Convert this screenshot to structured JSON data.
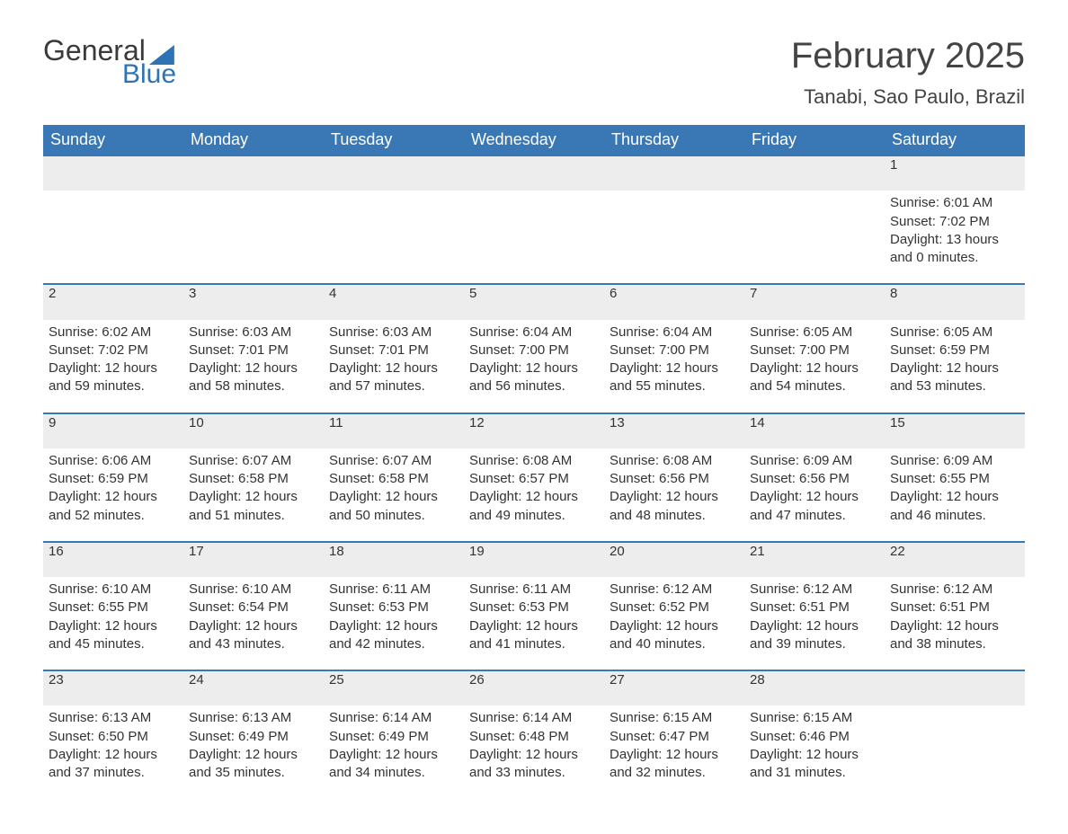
{
  "logo": {
    "word1": "General",
    "word2": "Blue"
  },
  "title": "February 2025",
  "location": "Tanabi, Sao Paulo, Brazil",
  "columns": [
    "Sunday",
    "Monday",
    "Tuesday",
    "Wednesday",
    "Thursday",
    "Friday",
    "Saturday"
  ],
  "colors": {
    "header_bg": "#3a78b5",
    "header_text": "#ffffff",
    "daynum_bg": "#ededed",
    "rule": "#3a78b5",
    "text": "#333333",
    "logo_accent": "#2e74b5"
  },
  "typography": {
    "title_fontsize": 40,
    "location_fontsize": 22,
    "header_fontsize": 18,
    "body_fontsize": 15
  },
  "layout": {
    "cols": 7,
    "rows": 5,
    "first_day_col_index": 6
  },
  "weeks": [
    [
      null,
      null,
      null,
      null,
      null,
      null,
      {
        "day": "1",
        "sunrise": "Sunrise: 6:01 AM",
        "sunset": "Sunset: 7:02 PM",
        "daylight1": "Daylight: 13 hours",
        "daylight2": "and 0 minutes."
      }
    ],
    [
      {
        "day": "2",
        "sunrise": "Sunrise: 6:02 AM",
        "sunset": "Sunset: 7:02 PM",
        "daylight1": "Daylight: 12 hours",
        "daylight2": "and 59 minutes."
      },
      {
        "day": "3",
        "sunrise": "Sunrise: 6:03 AM",
        "sunset": "Sunset: 7:01 PM",
        "daylight1": "Daylight: 12 hours",
        "daylight2": "and 58 minutes."
      },
      {
        "day": "4",
        "sunrise": "Sunrise: 6:03 AM",
        "sunset": "Sunset: 7:01 PM",
        "daylight1": "Daylight: 12 hours",
        "daylight2": "and 57 minutes."
      },
      {
        "day": "5",
        "sunrise": "Sunrise: 6:04 AM",
        "sunset": "Sunset: 7:00 PM",
        "daylight1": "Daylight: 12 hours",
        "daylight2": "and 56 minutes."
      },
      {
        "day": "6",
        "sunrise": "Sunrise: 6:04 AM",
        "sunset": "Sunset: 7:00 PM",
        "daylight1": "Daylight: 12 hours",
        "daylight2": "and 55 minutes."
      },
      {
        "day": "7",
        "sunrise": "Sunrise: 6:05 AM",
        "sunset": "Sunset: 7:00 PM",
        "daylight1": "Daylight: 12 hours",
        "daylight2": "and 54 minutes."
      },
      {
        "day": "8",
        "sunrise": "Sunrise: 6:05 AM",
        "sunset": "Sunset: 6:59 PM",
        "daylight1": "Daylight: 12 hours",
        "daylight2": "and 53 minutes."
      }
    ],
    [
      {
        "day": "9",
        "sunrise": "Sunrise: 6:06 AM",
        "sunset": "Sunset: 6:59 PM",
        "daylight1": "Daylight: 12 hours",
        "daylight2": "and 52 minutes."
      },
      {
        "day": "10",
        "sunrise": "Sunrise: 6:07 AM",
        "sunset": "Sunset: 6:58 PM",
        "daylight1": "Daylight: 12 hours",
        "daylight2": "and 51 minutes."
      },
      {
        "day": "11",
        "sunrise": "Sunrise: 6:07 AM",
        "sunset": "Sunset: 6:58 PM",
        "daylight1": "Daylight: 12 hours",
        "daylight2": "and 50 minutes."
      },
      {
        "day": "12",
        "sunrise": "Sunrise: 6:08 AM",
        "sunset": "Sunset: 6:57 PM",
        "daylight1": "Daylight: 12 hours",
        "daylight2": "and 49 minutes."
      },
      {
        "day": "13",
        "sunrise": "Sunrise: 6:08 AM",
        "sunset": "Sunset: 6:56 PM",
        "daylight1": "Daylight: 12 hours",
        "daylight2": "and 48 minutes."
      },
      {
        "day": "14",
        "sunrise": "Sunrise: 6:09 AM",
        "sunset": "Sunset: 6:56 PM",
        "daylight1": "Daylight: 12 hours",
        "daylight2": "and 47 minutes."
      },
      {
        "day": "15",
        "sunrise": "Sunrise: 6:09 AM",
        "sunset": "Sunset: 6:55 PM",
        "daylight1": "Daylight: 12 hours",
        "daylight2": "and 46 minutes."
      }
    ],
    [
      {
        "day": "16",
        "sunrise": "Sunrise: 6:10 AM",
        "sunset": "Sunset: 6:55 PM",
        "daylight1": "Daylight: 12 hours",
        "daylight2": "and 45 minutes."
      },
      {
        "day": "17",
        "sunrise": "Sunrise: 6:10 AM",
        "sunset": "Sunset: 6:54 PM",
        "daylight1": "Daylight: 12 hours",
        "daylight2": "and 43 minutes."
      },
      {
        "day": "18",
        "sunrise": "Sunrise: 6:11 AM",
        "sunset": "Sunset: 6:53 PM",
        "daylight1": "Daylight: 12 hours",
        "daylight2": "and 42 minutes."
      },
      {
        "day": "19",
        "sunrise": "Sunrise: 6:11 AM",
        "sunset": "Sunset: 6:53 PM",
        "daylight1": "Daylight: 12 hours",
        "daylight2": "and 41 minutes."
      },
      {
        "day": "20",
        "sunrise": "Sunrise: 6:12 AM",
        "sunset": "Sunset: 6:52 PM",
        "daylight1": "Daylight: 12 hours",
        "daylight2": "and 40 minutes."
      },
      {
        "day": "21",
        "sunrise": "Sunrise: 6:12 AM",
        "sunset": "Sunset: 6:51 PM",
        "daylight1": "Daylight: 12 hours",
        "daylight2": "and 39 minutes."
      },
      {
        "day": "22",
        "sunrise": "Sunrise: 6:12 AM",
        "sunset": "Sunset: 6:51 PM",
        "daylight1": "Daylight: 12 hours",
        "daylight2": "and 38 minutes."
      }
    ],
    [
      {
        "day": "23",
        "sunrise": "Sunrise: 6:13 AM",
        "sunset": "Sunset: 6:50 PM",
        "daylight1": "Daylight: 12 hours",
        "daylight2": "and 37 minutes."
      },
      {
        "day": "24",
        "sunrise": "Sunrise: 6:13 AM",
        "sunset": "Sunset: 6:49 PM",
        "daylight1": "Daylight: 12 hours",
        "daylight2": "and 35 minutes."
      },
      {
        "day": "25",
        "sunrise": "Sunrise: 6:14 AM",
        "sunset": "Sunset: 6:49 PM",
        "daylight1": "Daylight: 12 hours",
        "daylight2": "and 34 minutes."
      },
      {
        "day": "26",
        "sunrise": "Sunrise: 6:14 AM",
        "sunset": "Sunset: 6:48 PM",
        "daylight1": "Daylight: 12 hours",
        "daylight2": "and 33 minutes."
      },
      {
        "day": "27",
        "sunrise": "Sunrise: 6:15 AM",
        "sunset": "Sunset: 6:47 PM",
        "daylight1": "Daylight: 12 hours",
        "daylight2": "and 32 minutes."
      },
      {
        "day": "28",
        "sunrise": "Sunrise: 6:15 AM",
        "sunset": "Sunset: 6:46 PM",
        "daylight1": "Daylight: 12 hours",
        "daylight2": "and 31 minutes."
      },
      null
    ]
  ]
}
